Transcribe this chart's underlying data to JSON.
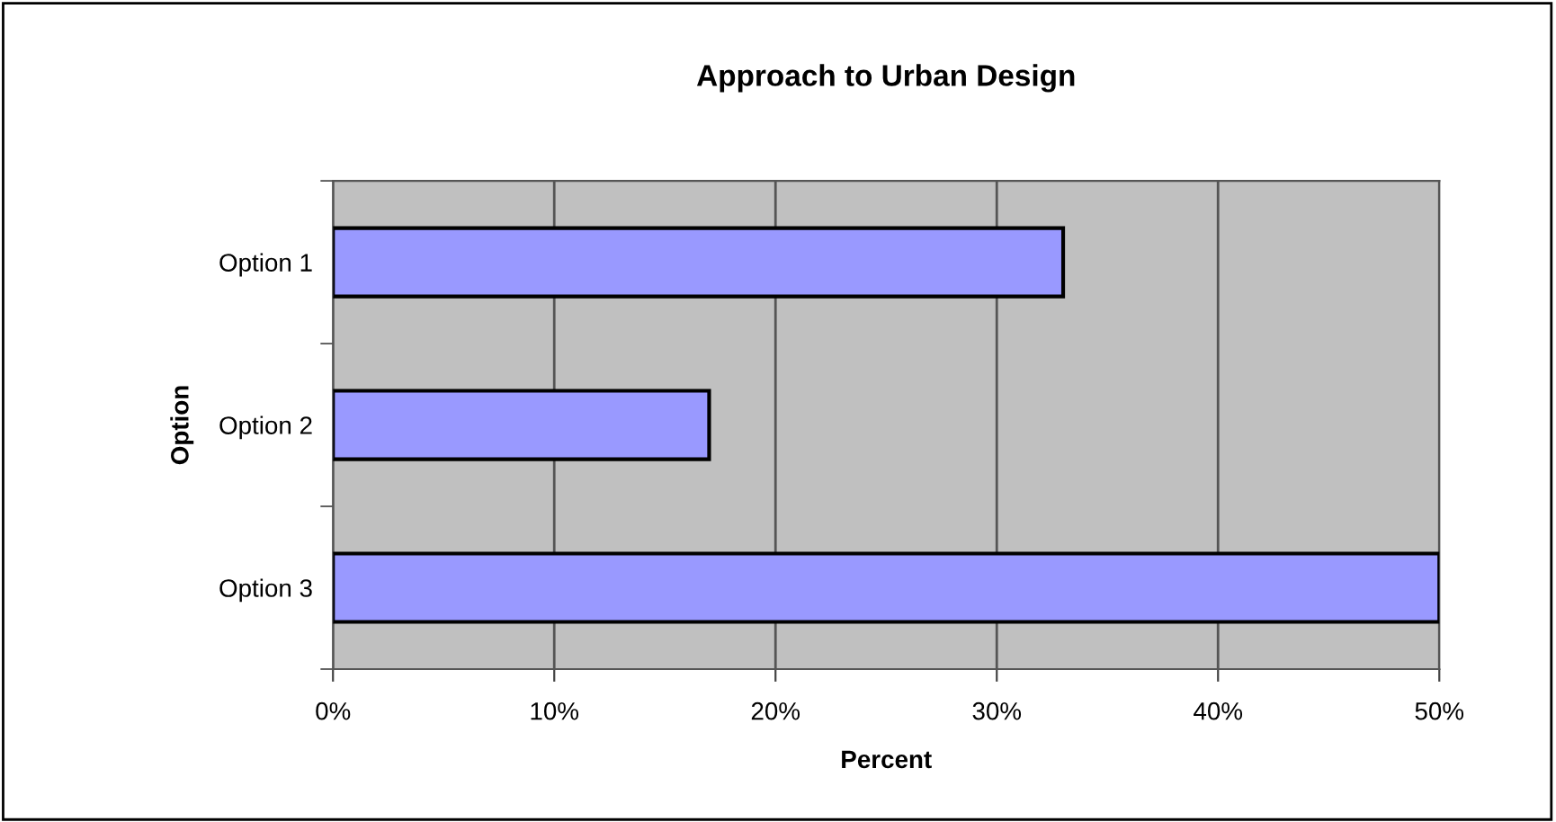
{
  "chart_data": {
    "type": "bar",
    "orientation": "horizontal",
    "title": "Approach to Urban Design",
    "xlabel": "Percent",
    "ylabel": "Option",
    "categories": [
      "Option 1",
      "Option 2",
      "Option 3"
    ],
    "series": [
      {
        "color": "#9999ff",
        "values": [
          33,
          17,
          50
        ]
      }
    ],
    "xlim": [
      0,
      50
    ],
    "xticks": [
      {
        "value": 0,
        "label": "0%"
      },
      {
        "value": 10,
        "label": "10%"
      },
      {
        "value": 20,
        "label": "20%"
      },
      {
        "value": 30,
        "label": "30%"
      },
      {
        "value": 40,
        "label": "40%"
      },
      {
        "value": 50,
        "label": "50%"
      }
    ],
    "grid": "x"
  }
}
